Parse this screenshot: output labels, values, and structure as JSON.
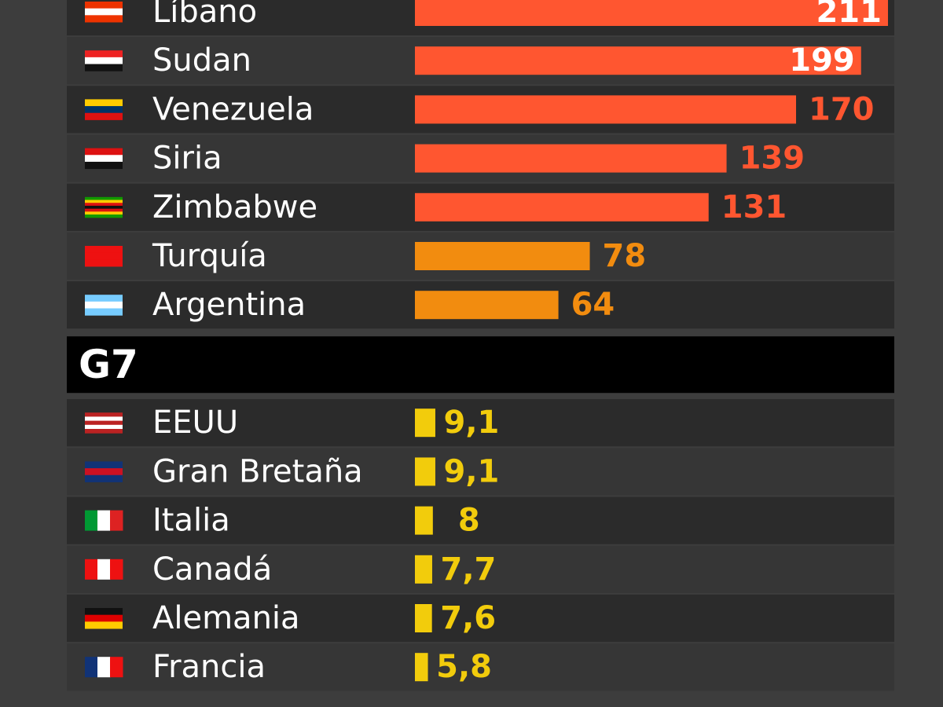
{
  "chart_data": {
    "type": "bar",
    "groups": [
      {
        "categories": [
          "Líbano",
          "Sudan",
          "Venezuela",
          "Siria",
          "Zimbabwe",
          "Turquía",
          "Argentina"
        ],
        "values": [
          211,
          199,
          170,
          139,
          131,
          78,
          64
        ],
        "colors": [
          "#ff5630",
          "#ff5630",
          "#ff5630",
          "#ff5630",
          "#ff5630",
          "#f28c0f",
          "#f28c0f"
        ]
      },
      {
        "title": "G7",
        "categories": [
          "EEUU",
          "Gran Bretaña",
          "Italia",
          "Canadá",
          "Alemania",
          "Francia"
        ],
        "values": [
          9.1,
          9.1,
          8,
          7.7,
          7.6,
          5.8
        ],
        "value_labels": [
          "9,1",
          "9,1",
          "8",
          "7,7",
          "7,6",
          "5,8"
        ],
        "colors": [
          "#f2cc0c",
          "#f2cc0c",
          "#f2cc0c",
          "#f2cc0c",
          "#f2cc0c",
          "#f2cc0c"
        ]
      }
    ]
  }
}
